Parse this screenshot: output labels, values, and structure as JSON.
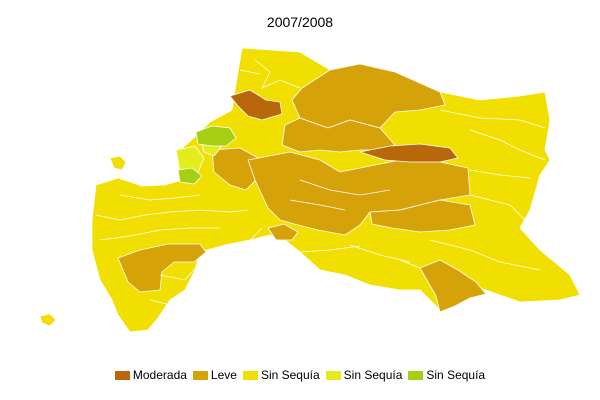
{
  "map": {
    "title": "2007/2008",
    "legend": [
      {
        "label": "Moderada",
        "color": "#b8680a"
      },
      {
        "label": "Leve",
        "color": "#d6a20a"
      },
      {
        "label": "Sin Sequía",
        "color": "#f0df00"
      },
      {
        "label": "Sin Sequía",
        "color": "#e4ec1c"
      },
      {
        "label": "Sin Sequía",
        "color": "#a6cf14"
      }
    ]
  }
}
